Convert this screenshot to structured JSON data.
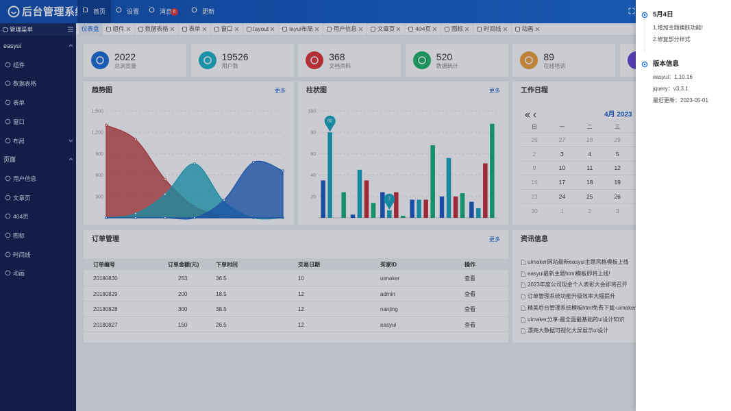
{
  "header": {
    "logo": "后台管理系统",
    "nav": [
      "首页",
      "设置",
      "消息",
      "更新"
    ],
    "badge": 6
  },
  "sidebar": {
    "title": "管理菜单",
    "groups": [
      {
        "label": "easyui",
        "items": [
          "组件",
          "数据表格",
          "表单",
          "窗口",
          "布局"
        ]
      },
      {
        "label": "页面",
        "items": [
          "用户信息",
          "文章页",
          "404页",
          "图标",
          "时间线",
          "动画"
        ]
      }
    ]
  },
  "tabs": [
    "仪表盘",
    "组件",
    "数据表格",
    "表单",
    "窗口",
    "layout",
    "layui布局",
    "用户信息",
    "文章页",
    "404页",
    "图标",
    "时间线",
    "动画"
  ],
  "stats": [
    {
      "value": 2022,
      "label": "总浏览量",
      "color": "#1e6fd9"
    },
    {
      "value": 19526,
      "label": "用户数",
      "color": "#1fb5c9"
    },
    {
      "value": 368,
      "label": "文档资料",
      "color": "#e2383a"
    },
    {
      "value": 520,
      "label": "数据统计",
      "color": "#20b26b"
    },
    {
      "value": 89,
      "label": "在线培训",
      "color": "#f0a03c"
    }
  ],
  "trend": {
    "title": "趋势图",
    "more": "更多",
    "ylim": [
      0,
      1500
    ],
    "yticks": [
      300,
      600,
      900,
      {
        "value": 1200,
        "label": "1,200"
      },
      {
        "value": 1500,
        "label": "1,500"
      }
    ],
    "series": [
      {
        "color": "#c23c3f",
        "values": [
          1300,
          1100,
          540,
          160,
          30,
          0,
          0
        ]
      },
      {
        "color": "#23a9c0",
        "values": [
          0,
          60,
          330,
          760,
          230,
          0,
          0
        ]
      },
      {
        "color": "#2163c4",
        "values": [
          0,
          0,
          0,
          0,
          250,
          780,
          660
        ]
      }
    ]
  },
  "bar": {
    "title": "柱状图",
    "more": "更多",
    "ylim": [
      0,
      100
    ],
    "yticks": [
      20,
      40,
      60,
      80,
      100
    ],
    "series": [
      {
        "color": "#1f5cc4",
        "values": [
          35,
          3,
          24,
          17,
          20,
          15
        ]
      },
      {
        "color": "#1aa6c2",
        "values": [
          80,
          45,
          7,
          17,
          56,
          9
        ]
      },
      {
        "color": "#c4303d",
        "values": [
          0,
          35,
          24,
          17,
          20,
          51
        ]
      },
      {
        "color": "#19b27a",
        "values": [
          24,
          14,
          2,
          68,
          23,
          88
        ]
      }
    ]
  },
  "calendar": {
    "title": "工作日程",
    "month": "4月 2023",
    "weekdays": [
      "日",
      "一",
      "二",
      "三"
    ],
    "weeks": [
      [
        26,
        27,
        28,
        29
      ],
      [
        2,
        3,
        4,
        5
      ],
      [
        9,
        10,
        11,
        12
      ],
      [
        16,
        17,
        18,
        19
      ],
      [
        23,
        24,
        25,
        26
      ],
      [
        30,
        1,
        2,
        3
      ]
    ]
  },
  "orders": {
    "title": "订单管理",
    "more": "更多",
    "columns": [
      "订单编号",
      "订单金额(元)",
      "下单时间",
      "交易日期",
      "买家ID",
      "操作"
    ],
    "rows": [
      [
        "20180830",
        253,
        36.5,
        10,
        "uimaker",
        "查看"
      ],
      [
        "20180829",
        200,
        18.5,
        12,
        "admin",
        "查看"
      ],
      [
        "20180828",
        300,
        38.5,
        12,
        "nanjing",
        "查看"
      ],
      [
        "20180827",
        150,
        26.5,
        12,
        "easyui",
        "查看"
      ]
    ]
  },
  "news": {
    "title": "资讯信息",
    "items": [
      "uimaker网站最新easyui主题风格模板上线",
      "easyui最新主题html模板即将上线!",
      "2023年度公司现金个人表彰大会即将召开",
      "订单管理系统功能升级效率大幅提升",
      "精美后台管理系统模板html免费下载-uimaker",
      "uimaker分享-最全面最基础的ui设计知识",
      "漂亮大数据可视化大屏展示ui设计"
    ]
  },
  "drawer": {
    "timeline": [
      {
        "title": "5月4日",
        "items": [
          "1.增加主题换肤功能!",
          "2.修复部分样式"
        ]
      },
      {
        "title": "版本信息",
        "items": [
          "easyui：1.10.16",
          "jquery：v3.3.1",
          "最近更新：2023-05-01"
        ]
      }
    ]
  }
}
